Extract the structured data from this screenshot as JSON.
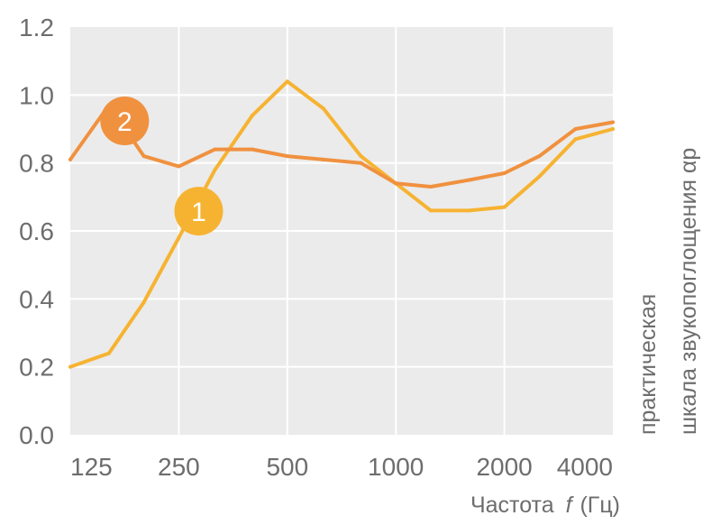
{
  "chart_data": {
    "type": "line",
    "xscale": "log2-octave",
    "x": [
      125,
      160,
      200,
      250,
      315,
      400,
      500,
      630,
      800,
      1000,
      1250,
      1600,
      2000,
      2500,
      3150,
      4000
    ],
    "x_ticks": [
      "125",
      "250",
      "500",
      "1000",
      "2000",
      "4000"
    ],
    "y_ticks": [
      "0.0",
      "0.2",
      "0.4",
      "0.6",
      "0.8",
      "1.0",
      "1.2"
    ],
    "ylim": [
      0,
      1.2
    ],
    "grid": true,
    "xlabel_parts": [
      "Частота",
      "f",
      "(Гц)"
    ],
    "ylabel_lines": [
      "практическая",
      "шкала звукопоглощения αp"
    ],
    "series": [
      {
        "marker": "1",
        "color": "#f6b332",
        "values": [
          0.2,
          0.24,
          0.39,
          0.58,
          0.78,
          0.94,
          1.04,
          0.96,
          0.82,
          0.74,
          0.66,
          0.66,
          0.67,
          0.76,
          0.87,
          0.9
        ]
      },
      {
        "marker": "2",
        "color": "#f0913f",
        "values": [
          0.81,
          0.97,
          0.82,
          0.79,
          0.84,
          0.84,
          0.82,
          0.81,
          0.8,
          0.74,
          0.73,
          0.75,
          0.77,
          0.82,
          0.9,
          0.92
        ]
      }
    ],
    "colors": {
      "plot_bg": "#ebebeb",
      "grid": "#ffffff",
      "text": "#6d6d6d"
    }
  }
}
